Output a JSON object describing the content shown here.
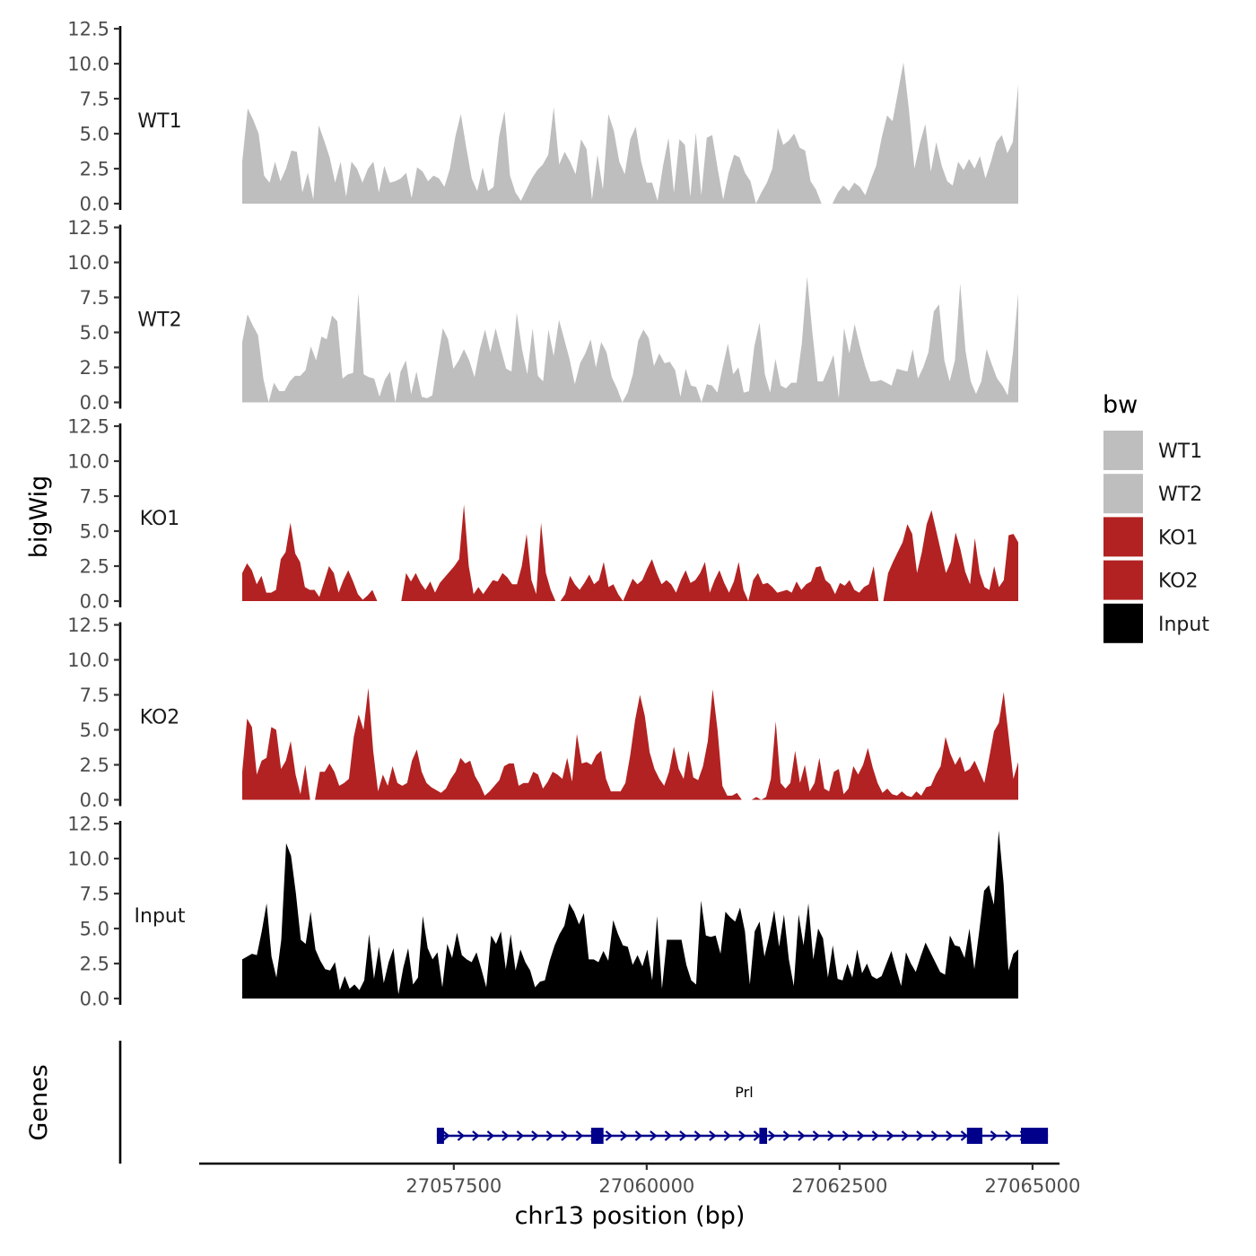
{
  "chart_data": {
    "type": "area",
    "ylabel": "bigWig",
    "xlabel": "chr13 position (bp)",
    "ylim": [
      0,
      12.5
    ],
    "y_ticks": [
      "0.0",
      "2.5",
      "5.0",
      "7.5",
      "10.0",
      "12.5"
    ],
    "xlim": [
      27054200,
      27065350
    ],
    "x_ticks": [
      {
        "value": 27057500,
        "label": "27057500"
      },
      {
        "value": 27060000,
        "label": "27060000"
      },
      {
        "value": 27062500,
        "label": "27062500"
      },
      {
        "value": 27065000,
        "label": "27065000"
      }
    ],
    "x_start": 27054800,
    "x_end": 27065100,
    "legend": {
      "title": "bw",
      "position": "right"
    },
    "series": [
      {
        "name": "WT1",
        "color": "#bebebe",
        "values": [
          3.0,
          6.8,
          6.0,
          5.0,
          2.0,
          1.5,
          3.0,
          1.6,
          2.5,
          3.8,
          3.7,
          0.8,
          2.2,
          0.3,
          5.6,
          4.5,
          3.3,
          1.5,
          3.0,
          0.5,
          3.0,
          2.5,
          1.5,
          2.5,
          3.0,
          0.8,
          2.7,
          1.5,
          1.6,
          1.8,
          2.2,
          0.4,
          2.6,
          2.3,
          1.6,
          2.0,
          1.8,
          1.2,
          2.5,
          4.8,
          6.4,
          4.0,
          1.8,
          0.9,
          2.6,
          0.9,
          1.2,
          4.8,
          6.6,
          2.0,
          0.8,
          0.2,
          1.0,
          1.8,
          2.4,
          2.8,
          3.5,
          6.9,
          2.8,
          3.7,
          3.0,
          2.1,
          4.6,
          3.9,
          0.3,
          3.5,
          1.0,
          6.4,
          5.2,
          3.0,
          2.1,
          4.6,
          5.5,
          3.0,
          1.5,
          1.5,
          0.2,
          2.7,
          4.7,
          0.8,
          4.6,
          4.2,
          0.5,
          5.1,
          0.6,
          4.7,
          4.9,
          2.5,
          0.3,
          2.2,
          3.5,
          3.3,
          2.2,
          1.6,
          0.0,
          0.8,
          1.5,
          2.5,
          5.4,
          4.2,
          4.5,
          5.0,
          4.0,
          3.8,
          1.6,
          1.0,
          0.0,
          0.0,
          0.0,
          0.8,
          1.3,
          0.9,
          1.5,
          1.2,
          0.6,
          1.7,
          2.7,
          4.7,
          6.3,
          5.9,
          8.0,
          10.1,
          6.7,
          2.5,
          4.3,
          5.7,
          2.3,
          4.4,
          2.7,
          1.6,
          1.3,
          3.0,
          2.4,
          3.2,
          2.5,
          3.4,
          1.8,
          3.0,
          4.4,
          4.9,
          3.6,
          4.4,
          8.5
        ]
      },
      {
        "name": "WT2",
        "color": "#bebebe",
        "values": [
          4.3,
          6.3,
          5.5,
          4.8,
          1.7,
          0.0,
          1.4,
          0.8,
          0.8,
          1.5,
          1.9,
          1.9,
          2.3,
          4.0,
          3.0,
          4.7,
          4.5,
          6.2,
          5.8,
          1.7,
          2.0,
          2.1,
          7.8,
          2.0,
          1.8,
          1.7,
          0.4,
          1.6,
          2.2,
          0.0,
          2.2,
          3.0,
          0.6,
          2.2,
          0.4,
          0.3,
          0.5,
          3.0,
          5.3,
          4.5,
          2.4,
          3.0,
          3.8,
          3.0,
          1.8,
          3.8,
          5.2,
          3.6,
          5.3,
          3.8,
          2.4,
          2.2,
          6.4,
          3.8,
          2.0,
          5.3,
          1.9,
          1.5,
          5.2,
          3.3,
          5.9,
          4.5,
          3.1,
          1.3,
          2.8,
          3.5,
          4.5,
          2.5,
          4.3,
          3.6,
          1.8,
          1.0,
          0.0,
          0.7,
          2.0,
          4.4,
          5.2,
          4.6,
          2.6,
          3.5,
          2.8,
          2.9,
          2.3,
          0.4,
          2.4,
          1.2,
          1.1,
          0.0,
          1.3,
          1.2,
          0.7,
          2.5,
          4.2,
          2.0,
          2.5,
          0.7,
          0.8,
          4.0,
          5.7,
          2.0,
          0.7,
          3.1,
          1.2,
          1.0,
          1.4,
          1.4,
          4.2,
          9.0,
          5.0,
          1.5,
          1.5,
          2.4,
          3.4,
          0.3,
          5.3,
          3.5,
          5.6,
          4.0,
          2.6,
          1.5,
          1.5,
          1.6,
          1.4,
          1.2,
          2.4,
          2.3,
          2.2,
          3.8,
          1.7,
          2.5,
          3.6,
          6.5,
          7.0,
          3.0,
          1.5,
          3.0,
          8.5,
          3.7,
          1.5,
          0.6,
          1.5,
          3.8,
          2.7,
          1.7,
          1.2,
          0.5,
          3.6,
          7.8
        ]
      },
      {
        "name": "KO1",
        "color": "#b22222",
        "values": [
          2.0,
          2.7,
          2.2,
          1.2,
          1.8,
          0.6,
          0.6,
          0.8,
          3.0,
          3.5,
          5.6,
          3.4,
          2.8,
          1.0,
          0.8,
          0.8,
          0.3,
          1.4,
          2.5,
          2.0,
          0.6,
          1.5,
          2.2,
          1.4,
          0.5,
          0.1,
          0.4,
          0.8,
          0.0,
          0.0,
          0.0,
          0.0,
          0.0,
          0.0,
          2.0,
          1.4,
          2.0,
          1.3,
          0.8,
          1.4,
          0.6,
          1.3,
          1.7,
          2.1,
          2.5,
          3.0,
          6.9,
          2.5,
          0.5,
          1.0,
          0.5,
          1.0,
          1.5,
          1.4,
          2.0,
          1.7,
          1.2,
          1.2,
          2.5,
          4.8,
          1.5,
          0.5,
          5.6,
          2.0,
          0.8,
          0.0,
          0.0,
          0.5,
          1.8,
          1.2,
          0.8,
          1.3,
          1.9,
          1.2,
          1.5,
          2.8,
          1.0,
          1.2,
          0.5,
          0.0,
          0.8,
          1.6,
          1.2,
          1.5,
          2.3,
          3.0,
          2.0,
          1.2,
          1.5,
          1.2,
          0.6,
          1.5,
          2.2,
          1.3,
          1.5,
          2.0,
          2.8,
          0.6,
          1.5,
          2.2,
          1.3,
          0.6,
          1.4,
          2.8,
          0.8,
          0.0,
          1.5,
          2.0,
          1.2,
          1.3,
          1.0,
          0.6,
          0.7,
          0.8,
          0.6,
          1.4,
          0.8,
          1.2,
          1.4,
          2.4,
          2.5,
          1.5,
          1.2,
          0.5,
          1.3,
          1.1,
          1.5,
          0.8,
          0.6,
          1.0,
          1.2,
          2.5,
          0.0,
          0.0,
          2.0,
          2.8,
          3.5,
          4.2,
          5.5,
          4.8,
          2.0,
          3.5,
          5.5,
          6.5,
          5.0,
          3.5,
          2.0,
          2.8,
          4.9,
          3.7,
          2.1,
          1.2,
          4.5,
          2.0,
          1.0,
          0.8,
          2.5,
          1.0,
          1.5,
          4.7,
          4.8,
          4.2
        ]
      },
      {
        "name": "KO2",
        "color": "#b22222",
        "values": [
          2.0,
          5.8,
          5.2,
          1.8,
          2.8,
          3.0,
          5.2,
          5.0,
          2.2,
          2.8,
          4.2,
          1.8,
          0.4,
          2.5,
          0.0,
          0.0,
          2.0,
          2.0,
          2.6,
          2.0,
          1.0,
          1.2,
          1.5,
          4.5,
          6.1,
          5.0,
          8.0,
          3.5,
          0.6,
          1.8,
          1.0,
          2.4,
          1.2,
          1.0,
          1.2,
          2.8,
          3.6,
          2.0,
          1.2,
          0.9,
          0.7,
          0.5,
          0.8,
          1.5,
          2.0,
          3.0,
          2.6,
          2.8,
          1.7,
          1.1,
          0.3,
          0.6,
          1.0,
          1.4,
          2.4,
          2.6,
          2.6,
          1.0,
          1.2,
          1.2,
          2.0,
          1.8,
          0.8,
          1.3,
          2.0,
          1.8,
          1.5,
          3.0,
          1.3,
          4.7,
          2.6,
          2.7,
          2.5,
          3.2,
          3.5,
          1.5,
          0.6,
          0.6,
          0.6,
          1.2,
          3.2,
          5.7,
          7.5,
          6.0,
          3.4,
          2.2,
          1.5,
          1.0,
          2.0,
          3.8,
          2.2,
          1.5,
          3.5,
          1.6,
          1.4,
          2.4,
          4.2,
          7.9,
          5.0,
          1.0,
          0.3,
          0.3,
          0.5,
          0.0,
          0.0,
          0.0,
          0.2,
          0.0,
          0.2,
          1.5,
          5.6,
          1.2,
          0.8,
          1.2,
          3.5,
          1.2,
          2.5,
          0.6,
          1.2,
          3.0,
          0.8,
          0.6,
          2.0,
          2.2,
          0.4,
          0.8,
          2.4,
          1.8,
          2.5,
          3.7,
          2.3,
          1.2,
          0.5,
          0.8,
          0.4,
          0.3,
          0.6,
          0.3,
          0.2,
          0.6,
          0.3,
          0.9,
          1.0,
          1.8,
          2.4,
          4.5,
          3.3,
          2.5,
          3.1,
          2.0,
          2.2,
          2.8,
          2.0,
          1.2,
          3.0,
          4.9,
          5.5,
          7.7,
          4.6,
          1.5,
          2.7
        ]
      },
      {
        "name": "Input",
        "color": "#000000",
        "values": [
          2.8,
          3.0,
          3.2,
          3.1,
          4.8,
          6.8,
          3.0,
          1.5,
          4.2,
          11.1,
          10.2,
          7.5,
          4.2,
          3.9,
          6.2,
          3.5,
          2.7,
          2.1,
          2.0,
          2.6,
          0.6,
          1.6,
          0.7,
          1.0,
          0.6,
          1.3,
          4.6,
          1.4,
          3.7,
          1.1,
          2.6,
          3.6,
          0.3,
          2.2,
          3.6,
          1.0,
          1.5,
          5.9,
          3.6,
          2.8,
          3.3,
          0.8,
          3.9,
          2.9,
          4.7,
          3.1,
          2.8,
          2.6,
          3.3,
          2.1,
          0.8,
          4.5,
          3.9,
          4.8,
          2.1,
          4.6,
          2.0,
          3.5,
          2.6,
          2.0,
          0.8,
          1.2,
          1.3,
          2.7,
          3.8,
          4.6,
          5.2,
          6.8,
          6.2,
          5.3,
          6.1,
          2.8,
          2.8,
          2.6,
          3.4,
          2.7,
          5.6,
          4.6,
          3.8,
          3.7,
          2.4,
          3.1,
          2.3,
          3.5,
          1.3,
          5.9,
          0.7,
          4.2,
          4.2,
          4.2,
          4.2,
          2.4,
          1.3,
          1.0,
          7.0,
          4.5,
          4.4,
          4.5,
          3.2,
          6.2,
          5.8,
          5.5,
          6.5,
          4.8,
          1.0,
          4.8,
          5.5,
          3.0,
          4.5,
          6.3,
          3.7,
          6.0,
          2.8,
          0.9,
          6.0,
          3.8,
          6.8,
          2.8,
          5.0,
          4.3,
          1.5,
          3.8,
          1.4,
          1.3,
          2.5,
          1.5,
          3.5,
          1.8,
          2.5,
          1.6,
          1.4,
          1.6,
          2.5,
          3.4,
          2.1,
          0.9,
          3.3,
          2.5,
          1.9,
          3.0,
          4.0,
          3.3,
          2.6,
          1.9,
          1.7,
          4.5,
          3.8,
          3.7,
          2.9,
          5.0,
          2.1,
          4.8,
          7.7,
          8.1,
          6.7,
          12.0,
          8.2,
          2.0,
          3.2,
          3.5
        ]
      }
    ],
    "genes": [
      {
        "name": "Prl",
        "strand": "+",
        "start": 27057280,
        "end": 27065200,
        "exons": [
          [
            27057280,
            27057340
          ],
          [
            27059280,
            27059440
          ],
          [
            27061460,
            27061560
          ],
          [
            27064150,
            27064350
          ],
          [
            27064850,
            27065200
          ]
        ]
      }
    ],
    "genes_track_label": "Genes"
  }
}
